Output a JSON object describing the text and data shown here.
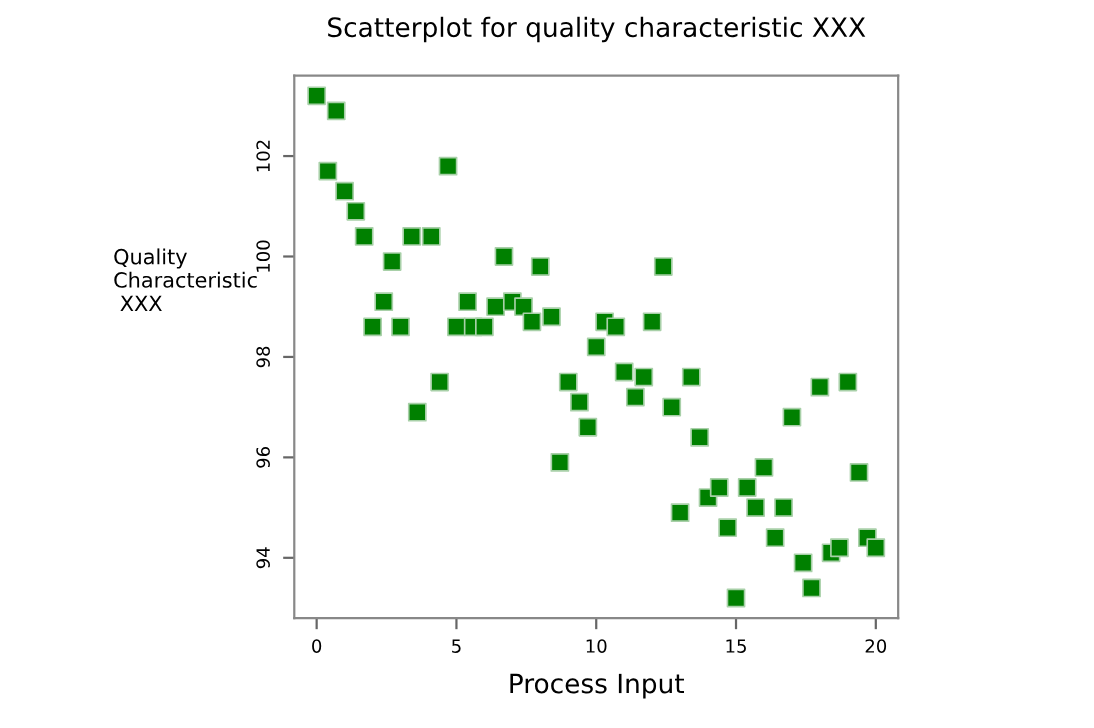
{
  "chart_data": {
    "type": "scatter",
    "title": "Scatterplot for quality characteristic XXX",
    "xlabel": "Process Input",
    "ylabel": "Quality\nCharacteristic\n XXX",
    "marker": "square",
    "grid": false,
    "xlim": [
      -0.8,
      20.8
    ],
    "ylim": [
      92.8,
      103.6
    ],
    "xticks": [
      0,
      5,
      10,
      15,
      20
    ],
    "yticks": [
      94,
      96,
      98,
      100,
      102
    ],
    "series": [
      {
        "color": "#008000",
        "x": [
          0,
          0.7,
          0.4,
          1.0,
          1.4,
          1.7,
          2.0,
          2.4,
          2.7,
          3.0,
          3.4,
          4.1,
          3.6,
          4.4,
          4.7,
          5.0,
          5.4,
          5.6,
          6.0,
          6.4,
          6.7,
          7.0,
          7.4,
          7.7,
          8.0,
          8.4,
          8.7,
          9.0,
          9.4,
          9.7,
          10.0,
          10.3,
          10.7,
          11.0,
          11.4,
          11.7,
          12.0,
          12.4,
          12.7,
          13.0,
          13.4,
          13.7,
          14.0,
          14.4,
          14.7,
          15.0,
          15.4,
          15.7,
          16.0,
          16.4,
          16.7,
          17.0,
          17.4,
          17.7,
          18.0,
          18.4,
          18.7,
          19.0,
          19.4,
          19.7,
          20.0
        ],
        "values": [
          103.2,
          102.9,
          101.7,
          101.3,
          100.9,
          100.4,
          98.6,
          99.1,
          99.9,
          98.6,
          100.4,
          100.4,
          96.9,
          97.5,
          101.8,
          98.6,
          99.1,
          98.6,
          98.6,
          99.0,
          100.0,
          99.1,
          99.0,
          98.7,
          99.8,
          98.8,
          95.9,
          97.5,
          97.1,
          96.6,
          98.2,
          98.7,
          98.6,
          97.7,
          97.2,
          97.6,
          98.7,
          99.8,
          97.0,
          94.9,
          97.6,
          96.4,
          95.2,
          95.4,
          94.6,
          93.2,
          95.4,
          95.0,
          95.8,
          94.4,
          95.0,
          96.8,
          93.9,
          93.4,
          97.4,
          94.1,
          94.2,
          97.5,
          95.7,
          94.4,
          94.2
        ]
      }
    ]
  }
}
